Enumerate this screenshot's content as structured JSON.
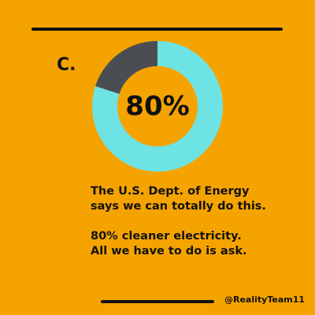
{
  "option_letter": "C.",
  "caption": {
    "line1": "The U.S. Dept. of Energy",
    "line2": "says we can totally do this.",
    "line3": "80% cleaner electricity.",
    "line4": "All we have to do is ask."
  },
  "handle": "@RealityTeam11",
  "colors": {
    "background": "#F5A300",
    "share": "#6EE3E3",
    "remainder": "#4A4E53",
    "text": "#111111"
  },
  "chart_data": {
    "type": "pie",
    "donut": true,
    "center_label": "80%",
    "values": [
      80,
      20
    ],
    "slice_colors": [
      "#6EE3E3",
      "#4A4E53"
    ]
  }
}
